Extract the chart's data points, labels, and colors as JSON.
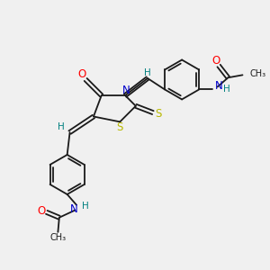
{
  "bg_color": "#f0f0f0",
  "bond_color": "#1a1a1a",
  "atom_colors": {
    "O": "#ff0000",
    "N": "#0000cc",
    "S": "#b8b800",
    "H": "#008080",
    "C": "#1a1a1a"
  }
}
